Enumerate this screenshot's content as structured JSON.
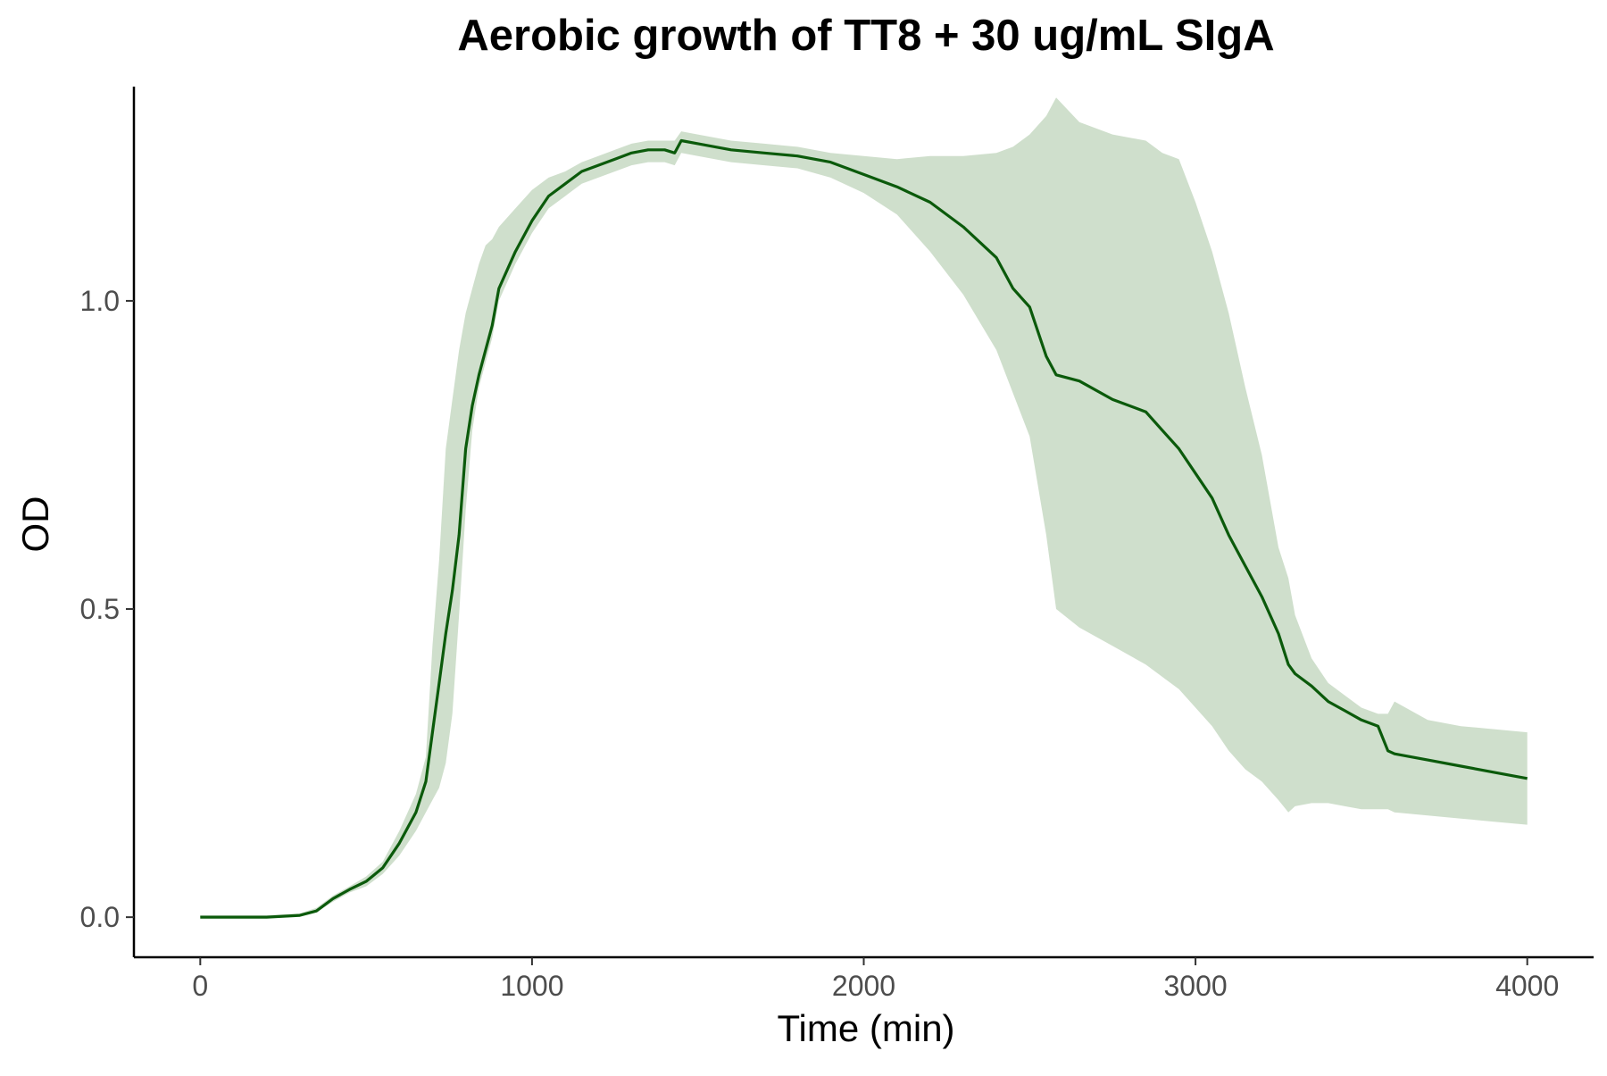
{
  "chart_data": {
    "type": "line",
    "title": "Aerobic growth of TT8 + 30 ug/mL SIgA",
    "xlabel": "Time (min)",
    "ylabel": "OD",
    "xlim": [
      -200,
      4200
    ],
    "ylim": [
      -0.065,
      1.365
    ],
    "x_ticks": [
      0,
      1000,
      2000,
      3000,
      4000
    ],
    "x_tick_labels": [
      "0",
      "1000",
      "2000",
      "3000",
      "4000"
    ],
    "y_ticks": [
      0.0,
      0.5,
      1.0
    ],
    "y_tick_labels": [
      "0.0",
      "0.5",
      "1.0"
    ],
    "grid": false,
    "legend": "none",
    "colors": {
      "line": "#0b5a0b",
      "band": "#cfdfcc"
    },
    "series": [
      {
        "x": [
          0,
          100,
          200,
          300,
          350,
          400,
          450,
          500,
          550,
          600,
          650,
          680,
          700,
          720,
          740,
          760,
          780,
          800,
          820,
          840,
          860,
          880,
          900,
          950,
          1000,
          1050,
          1100,
          1150,
          1200,
          1250,
          1300,
          1350,
          1400,
          1430,
          1450,
          1500,
          1600,
          1700,
          1800,
          1900,
          2000,
          2100,
          2200,
          2300,
          2400,
          2450,
          2500,
          2550,
          2580,
          2650,
          2750,
          2850,
          2900,
          2950,
          3000,
          3050,
          3100,
          3150,
          3200,
          3250,
          3280,
          3300,
          3350,
          3400,
          3450,
          3500,
          3550,
          3580,
          3600,
          3700,
          3800,
          3900,
          4000
        ],
        "y": [
          0.0,
          0.0,
          0.0,
          0.003,
          0.01,
          0.03,
          0.045,
          0.058,
          0.08,
          0.12,
          0.17,
          0.22,
          0.3,
          0.38,
          0.46,
          0.53,
          0.62,
          0.76,
          0.83,
          0.88,
          0.92,
          0.96,
          1.02,
          1.08,
          1.13,
          1.17,
          1.19,
          1.21,
          1.22,
          1.23,
          1.24,
          1.245,
          1.245,
          1.24,
          1.26,
          1.255,
          1.245,
          1.24,
          1.235,
          1.225,
          1.205,
          1.185,
          1.16,
          1.12,
          1.07,
          1.02,
          0.99,
          0.91,
          0.88,
          0.87,
          0.84,
          0.82,
          0.79,
          0.76,
          0.72,
          0.68,
          0.62,
          0.57,
          0.52,
          0.46,
          0.41,
          0.395,
          0.375,
          0.35,
          0.335,
          0.32,
          0.31,
          0.27,
          0.265,
          0.255,
          0.245,
          0.235,
          0.225
        ],
        "lower": [
          0.0,
          0.0,
          0.0,
          0.002,
          0.008,
          0.025,
          0.04,
          0.05,
          0.07,
          0.1,
          0.14,
          0.17,
          0.19,
          0.21,
          0.25,
          0.33,
          0.49,
          0.66,
          0.79,
          0.86,
          0.9,
          0.94,
          1.0,
          1.06,
          1.11,
          1.15,
          1.17,
          1.19,
          1.2,
          1.21,
          1.22,
          1.225,
          1.225,
          1.22,
          1.24,
          1.235,
          1.225,
          1.22,
          1.215,
          1.2,
          1.175,
          1.14,
          1.08,
          1.01,
          0.92,
          0.85,
          0.78,
          0.62,
          0.5,
          0.47,
          0.44,
          0.41,
          0.39,
          0.37,
          0.34,
          0.31,
          0.27,
          0.24,
          0.22,
          0.19,
          0.17,
          0.18,
          0.185,
          0.185,
          0.18,
          0.175,
          0.175,
          0.175,
          0.17,
          0.165,
          0.16,
          0.155,
          0.15
        ],
        "upper": [
          0.003,
          0.003,
          0.003,
          0.006,
          0.015,
          0.035,
          0.05,
          0.066,
          0.09,
          0.14,
          0.2,
          0.26,
          0.44,
          0.58,
          0.76,
          0.84,
          0.92,
          0.98,
          1.02,
          1.06,
          1.09,
          1.1,
          1.12,
          1.15,
          1.18,
          1.2,
          1.21,
          1.225,
          1.235,
          1.245,
          1.255,
          1.26,
          1.26,
          1.26,
          1.275,
          1.27,
          1.26,
          1.255,
          1.25,
          1.24,
          1.235,
          1.23,
          1.235,
          1.235,
          1.24,
          1.25,
          1.27,
          1.3,
          1.33,
          1.29,
          1.27,
          1.26,
          1.24,
          1.23,
          1.16,
          1.08,
          0.98,
          0.86,
          0.75,
          0.6,
          0.55,
          0.49,
          0.42,
          0.38,
          0.36,
          0.34,
          0.33,
          0.33,
          0.35,
          0.32,
          0.31,
          0.305,
          0.3
        ]
      }
    ]
  }
}
